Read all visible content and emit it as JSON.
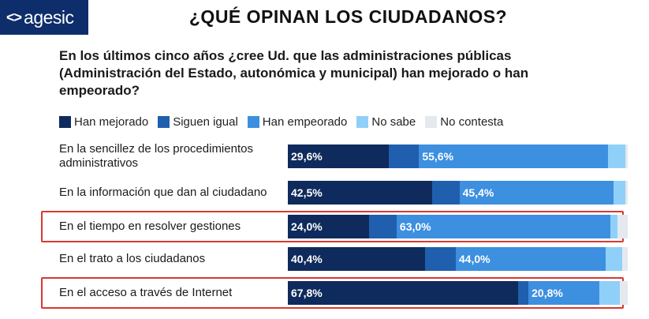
{
  "logo": {
    "mark": "<>",
    "text": "agesic"
  },
  "title": "¿QUÉ OPINAN LOS CIUDADANOS?",
  "question": "En los últimos cinco años ¿cree Ud. que las administraciones públicas (Administración del Estado, autonómica y municipal) han mejorado o han empeorado?",
  "colors": {
    "han_mejorado": "#0f2a5c",
    "siguen_igual": "#1f5fae",
    "han_empeorado": "#3d8fe0",
    "no_sabe": "#8fd0f8",
    "no_contesta": "#e4e9ef",
    "highlight": "#d9382f"
  },
  "chart_data": {
    "type": "bar",
    "orientation": "horizontal",
    "stacked": true,
    "title": "¿QUÉ OPINAN LOS CIUDADANOS?",
    "xlim": [
      0,
      100
    ],
    "categories": [
      "En la sencillez de los procedimientos administrativos",
      "En la información que dan al ciudadano",
      "En el tiempo en resolver gestiones",
      "En el trato a los ciudadanos",
      "En el acceso a través de Internet"
    ],
    "highlighted": [
      false,
      false,
      true,
      false,
      true
    ],
    "legend": [
      "Han mejorado",
      "Siguen igual",
      "Han empeorado",
      "No sabe",
      "No contesta"
    ],
    "series": [
      {
        "name": "Han mejorado",
        "key": "han_mejorado",
        "values": [
          29.6,
          42.5,
          24.0,
          40.4,
          67.8
        ],
        "labels": [
          "29,6%",
          "42,5%",
          "24,0%",
          "40,4%",
          "67,8%"
        ]
      },
      {
        "name": "Siguen igual",
        "key": "siguen_igual",
        "values": [
          9.0,
          8.0,
          8.0,
          9.0,
          3.0
        ],
        "labels": [
          "",
          "",
          "",
          "",
          ""
        ]
      },
      {
        "name": "Han empeorado",
        "key": "han_empeorado",
        "values": [
          55.6,
          45.4,
          63.0,
          44.0,
          20.8
        ],
        "labels": [
          "55,6%",
          "45,4%",
          "63,0%",
          "44,0%",
          "20,8%"
        ]
      },
      {
        "name": "No sabe",
        "key": "no_sabe",
        "values": [
          5.0,
          3.5,
          2.0,
          5.0,
          6.0
        ],
        "labels": [
          "",
          "",
          "",
          "",
          ""
        ]
      },
      {
        "name": "No contesta",
        "key": "no_contesta",
        "values": [
          0.8,
          0.6,
          3.0,
          1.6,
          2.4
        ],
        "labels": [
          "",
          "",
          "",
          "",
          ""
        ]
      }
    ]
  }
}
